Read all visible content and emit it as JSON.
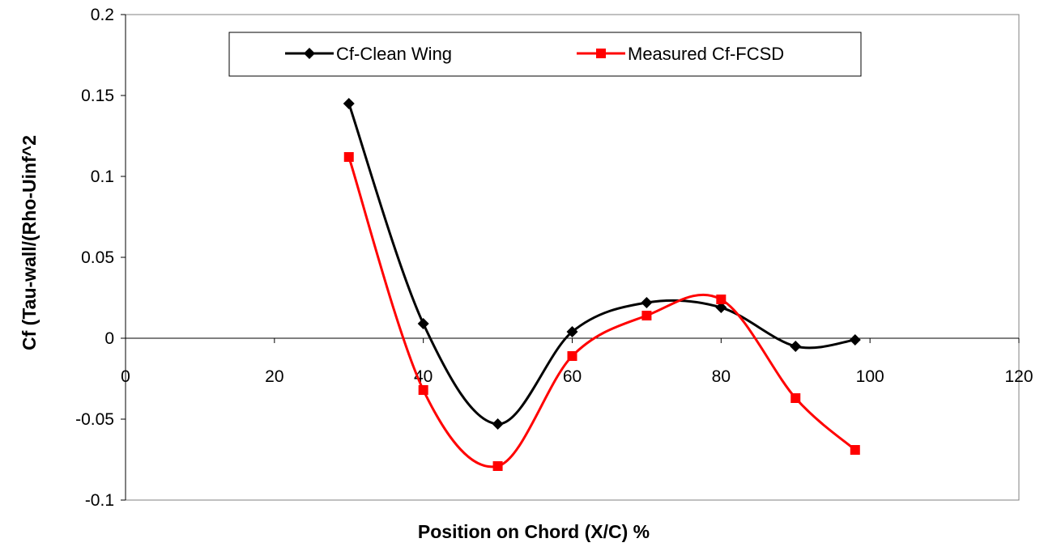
{
  "chart_data": {
    "type": "line",
    "title": "",
    "xlabel": "Position on Chord (X/C) %",
    "ylabel": "Cf (Tau-wall/(Rho-Uinf^2",
    "xlim": [
      0,
      120
    ],
    "ylim": [
      -0.1,
      0.2
    ],
    "xticks": [
      "0",
      "20",
      "40",
      "60",
      "80",
      "100",
      "120"
    ],
    "yticks": [
      "0.2",
      "0.15",
      "0.1",
      "0.05",
      "0",
      "-0.05",
      "-0.1"
    ],
    "grid": false,
    "legend_position": "top",
    "series": [
      {
        "name": "Cf-Clean Wing",
        "color": "#000000",
        "marker": "diamond",
        "x": [
          30,
          40,
          50,
          60,
          70,
          80,
          90,
          98
        ],
        "y": [
          0.145,
          0.009,
          -0.053,
          0.004,
          0.022,
          0.019,
          -0.005,
          -0.001
        ]
      },
      {
        "name": "Measured Cf-FCSD",
        "color": "#ff0000",
        "marker": "square",
        "x": [
          30,
          40,
          50,
          60,
          70,
          80,
          90,
          98
        ],
        "y": [
          0.112,
          -0.032,
          -0.079,
          -0.011,
          0.014,
          0.024,
          -0.037,
          -0.069
        ]
      }
    ]
  }
}
